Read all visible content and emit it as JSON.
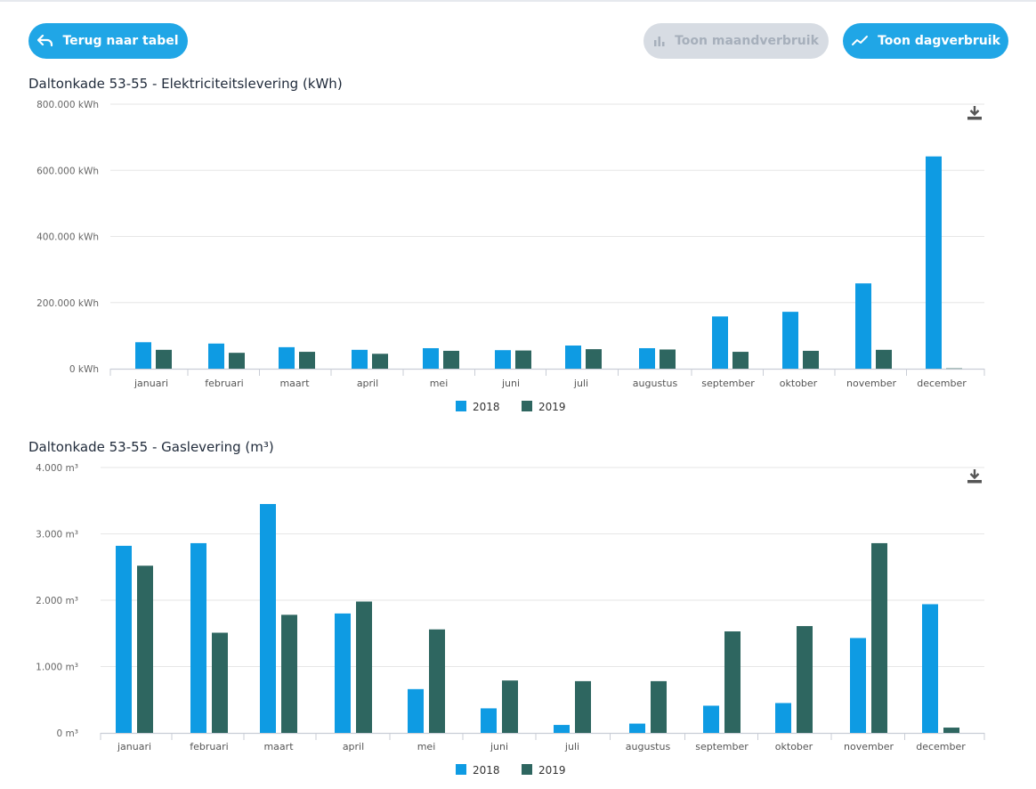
{
  "toolbar": {
    "back_label": "Terug naar tabel",
    "monthly_label": "Toon maandverbruik",
    "daily_label": "Toon dagverbruik"
  },
  "colors": {
    "accent": "#20a6e6",
    "series_2018": "#0e9be3",
    "series_2019": "#2e6660",
    "disabled": "#d7dce3"
  },
  "chart_data": [
    {
      "type": "bar",
      "title": "Daltonkade 53-55 - Elektriciteitslevering (kWh)",
      "categories": [
        "januari",
        "februari",
        "maart",
        "april",
        "mei",
        "juni",
        "juli",
        "augustus",
        "september",
        "oktober",
        "november",
        "december"
      ],
      "series": [
        {
          "name": "2018",
          "values": [
            80000,
            76000,
            65000,
            57000,
            62000,
            56000,
            70000,
            62000,
            158000,
            172000,
            258000,
            642000
          ]
        },
        {
          "name": "2019",
          "values": [
            57000,
            48000,
            51000,
            45000,
            54000,
            55000,
            59000,
            58000,
            51000,
            54000,
            57000,
            1000
          ]
        }
      ],
      "ylim": [
        0,
        800000
      ],
      "yticks": [
        {
          "value": 0,
          "label": "0 kWh"
        },
        {
          "value": 200000,
          "label": "200.000 kWh"
        },
        {
          "value": 400000,
          "label": "400.000 kWh"
        },
        {
          "value": 600000,
          "label": "600.000 kWh"
        },
        {
          "value": 800000,
          "label": "800.000 kWh"
        }
      ],
      "legend_position": "bottom-center",
      "grid": true
    },
    {
      "type": "bar",
      "title": "Daltonkade 53-55 - Gaslevering (m³)",
      "categories": [
        "januari",
        "februari",
        "maart",
        "april",
        "mei",
        "juni",
        "juli",
        "augustus",
        "september",
        "oktober",
        "november",
        "december"
      ],
      "series": [
        {
          "name": "2018",
          "values": [
            2820,
            2860,
            3450,
            1800,
            660,
            370,
            120,
            140,
            410,
            450,
            1430,
            1940
          ]
        },
        {
          "name": "2019",
          "values": [
            2520,
            1510,
            1780,
            1980,
            1560,
            790,
            780,
            780,
            1530,
            1610,
            2860,
            80
          ]
        }
      ],
      "ylim": [
        0,
        4000
      ],
      "yticks": [
        {
          "value": 0,
          "label": "0 m³"
        },
        {
          "value": 1000,
          "label": "1.000 m³"
        },
        {
          "value": 2000,
          "label": "2.000 m³"
        },
        {
          "value": 3000,
          "label": "3.000 m³"
        },
        {
          "value": 4000,
          "label": "4.000 m³"
        }
      ],
      "legend_position": "bottom-center",
      "grid": true
    }
  ]
}
